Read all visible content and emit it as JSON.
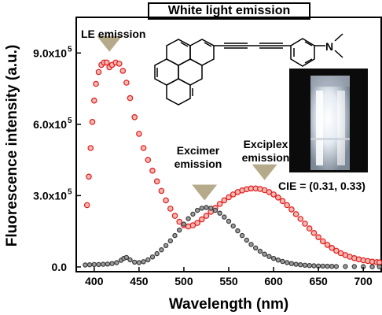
{
  "chart_data": {
    "type": "scatter",
    "title": "White light emission",
    "xlabel": "Wavelength (nm)",
    "ylabel": "Fluorescence intensity (a.u.)",
    "xlim": [
      380,
      720
    ],
    "ylim": [
      -20000,
      1050000
    ],
    "x_ticks": [
      400,
      450,
      500,
      550,
      600,
      650,
      700
    ],
    "x_tick_labels": [
      "400",
      "450",
      "500",
      "550",
      "600",
      "650",
      "700"
    ],
    "y_ticks": [
      0,
      300000,
      600000,
      900000
    ],
    "y_tick_labels": [
      "0.0",
      "3.0x10",
      "6.0x10",
      "9.0x10"
    ],
    "y_tick_exponent": "5",
    "grid": false,
    "series": [
      {
        "color": "#e31a1c",
        "x": [
          392,
          394,
          396,
          398,
          400,
          402,
          405,
          408,
          411,
          414,
          417,
          420,
          424,
          428,
          432,
          436,
          440,
          445,
          450,
          455,
          460,
          465,
          470,
          475,
          480,
          485,
          490,
          495,
          500,
          505,
          510,
          515,
          520,
          525,
          530,
          535,
          540,
          545,
          550,
          555,
          560,
          565,
          570,
          575,
          580,
          585,
          590,
          595,
          600,
          605,
          610,
          615,
          620,
          625,
          630,
          635,
          640,
          645,
          650,
          655,
          660,
          665,
          670,
          675,
          680,
          685,
          690,
          695,
          700,
          705,
          710,
          715,
          718
        ],
        "y": [
          260000,
          380000,
          500000,
          610000,
          700000,
          770000,
          820000,
          850000,
          860000,
          860000,
          840000,
          850000,
          860000,
          855000,
          825000,
          775000,
          710000,
          630000,
          560000,
          500000,
          450000,
          405000,
          360000,
          320000,
          280000,
          245000,
          215000,
          190000,
          175000,
          170000,
          175000,
          185000,
          200000,
          215000,
          232000,
          248000,
          265000,
          280000,
          293000,
          305000,
          315000,
          322000,
          327000,
          330000,
          330000,
          328000,
          323000,
          315000,
          305000,
          292000,
          277000,
          260000,
          242000,
          222000,
          202000,
          182000,
          162000,
          143000,
          125000,
          108000,
          93000,
          80000,
          68000,
          58000,
          50000,
          43000,
          37000,
          32000,
          28000,
          25000,
          22000,
          20000,
          19000
        ]
      },
      {
        "color": "#3a3a3a",
        "x": [
          390,
          395,
          400,
          405,
          410,
          415,
          420,
          425,
          430,
          433,
          436,
          440,
          445,
          450,
          455,
          460,
          465,
          470,
          475,
          480,
          485,
          490,
          495,
          500,
          505,
          510,
          515,
          520,
          525,
          530,
          535,
          540,
          545,
          550,
          555,
          560,
          565,
          570,
          575,
          580,
          585,
          590,
          595,
          600,
          605,
          610,
          615,
          620,
          625,
          630,
          635,
          640,
          645,
          650,
          655,
          660,
          665,
          670,
          680,
          690,
          700,
          710,
          718
        ],
        "y": [
          8000,
          9000,
          10000,
          10000,
          11000,
          12000,
          14000,
          18000,
          28000,
          36000,
          40000,
          30000,
          20000,
          18000,
          22000,
          30000,
          42000,
          56000,
          72000,
          90000,
          110000,
          132000,
          155000,
          180000,
          203000,
          222000,
          238000,
          247000,
          250000,
          247000,
          238000,
          226000,
          210000,
          192000,
          172000,
          152000,
          132000,
          113000,
          95000,
          80000,
          66000,
          54000,
          44000,
          36000,
          29000,
          23000,
          18000,
          14000,
          11000,
          9000,
          7000,
          6000,
          5000,
          4000,
          3500,
          3000,
          2500,
          2000,
          1800,
          1500,
          1200,
          1000,
          1000
        ]
      }
    ],
    "annotations": [
      {
        "text": "LE emission",
        "arrow_x": 417,
        "arrow_y": 905000
      },
      {
        "text": "Excimer emission",
        "arrow_x": 523,
        "arrow_y": 280000
      },
      {
        "text": "Exciplex emission",
        "arrow_x": 590,
        "arrow_y": 365000
      }
    ],
    "cie_label": "CIE = (0.31, 0.33)",
    "arrow_color": "#b5aa8a"
  },
  "figure": {
    "title_box": "White light emission",
    "annot_le": "LE emission",
    "annot_excimer_1": "Excimer",
    "annot_excimer_2": "emission",
    "annot_exciplex_1": "Exciplex",
    "annot_exciplex_2": "emission",
    "cie": "CIE = (0.31, 0.33)",
    "molecule_substituent": "N"
  }
}
